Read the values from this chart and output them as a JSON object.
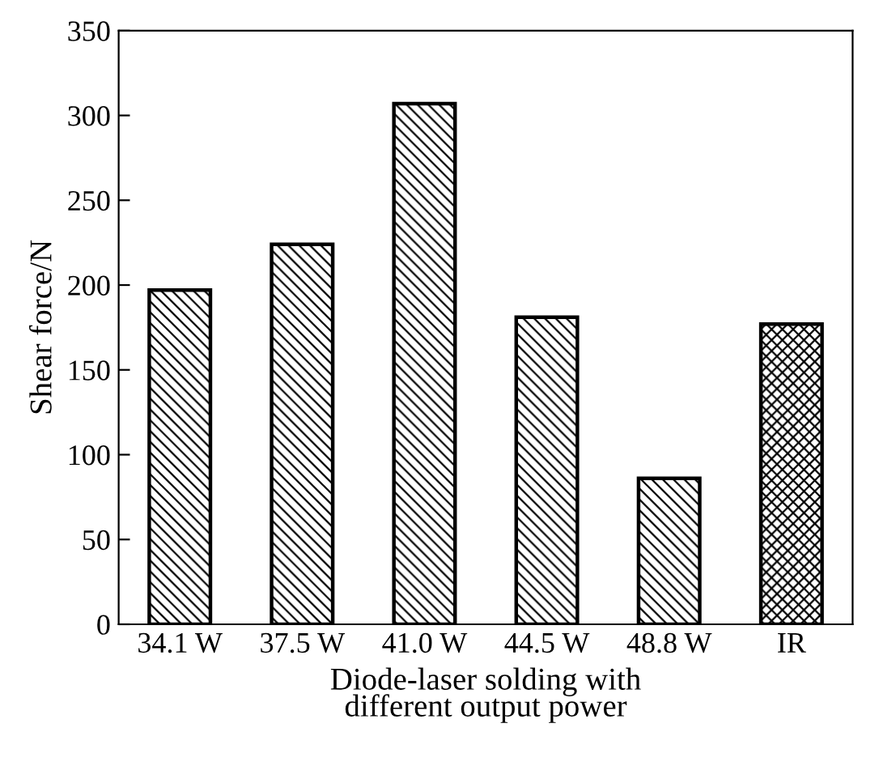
{
  "chart_data": {
    "type": "bar",
    "xlabel": "Diode-laser solding with\ndifferent output power",
    "ylabel": "Shear force/N",
    "categories": [
      "34.1 W",
      "37.5 W",
      "41.0 W",
      "44.5 W",
      "48.8 W",
      "IR"
    ],
    "values": [
      197,
      224,
      307,
      181,
      86,
      177
    ],
    "ylim": [
      0,
      350
    ],
    "yticks": [
      0,
      50,
      100,
      150,
      200,
      250,
      300,
      350
    ],
    "grid": false,
    "legend": false
  }
}
